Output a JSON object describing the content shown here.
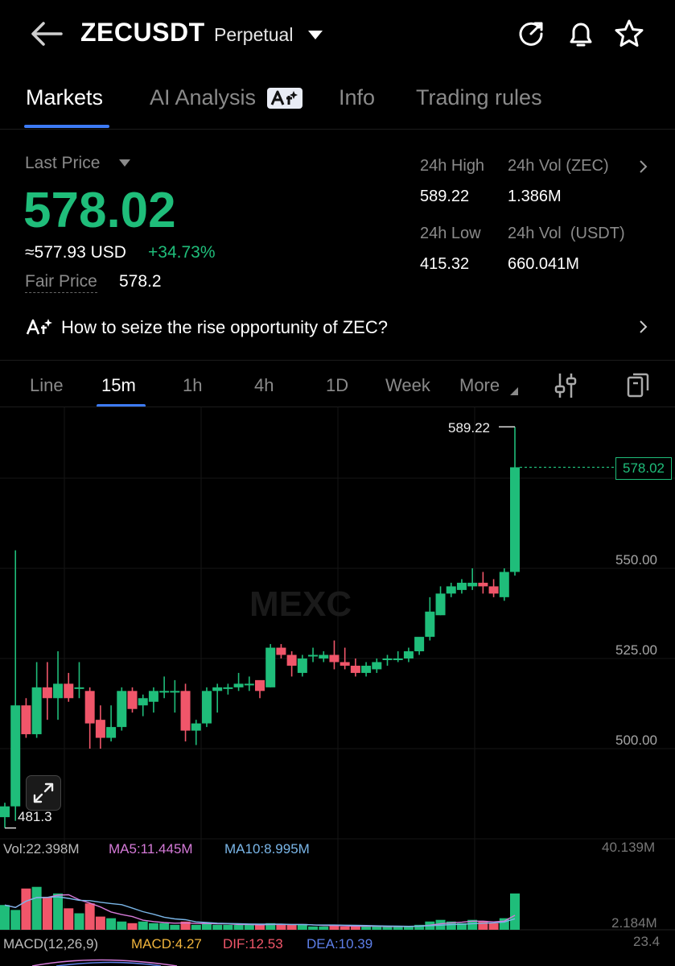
{
  "header": {
    "title": "ZECUSDT",
    "subtitle": "Perpetual"
  },
  "tabs": [
    {
      "label": "Markets"
    },
    {
      "label": "AI Analysis"
    },
    {
      "label": "Info"
    },
    {
      "label": "Trading rules"
    }
  ],
  "price": {
    "last_price_label": "Last Price",
    "last_price": "578.02",
    "usd_equiv": "≈577.93 USD",
    "change": "+34.73%",
    "fair_label": "Fair Price",
    "fair_value": "578.2"
  },
  "stats": {
    "high_label": "24h High",
    "high_value": "589.22",
    "vol_zec_label": "24h Vol (ZEC)",
    "vol_zec_value": "1.386M",
    "low_label": "24h Low",
    "low_value": "415.32",
    "vol_usdt_label": "24h Vol  (USDT)",
    "vol_usdt_value": "660.041M"
  },
  "ai_banner": {
    "text": "How to seize the rise opportunity of ZEC?"
  },
  "intervals": [
    {
      "label": "Line"
    },
    {
      "label": "15m"
    },
    {
      "label": "1h"
    },
    {
      "label": "4h"
    },
    {
      "label": "1D"
    },
    {
      "label": "Week"
    },
    {
      "label": "More"
    }
  ],
  "chart": {
    "high_marker": "589.22",
    "low_marker": "481.3",
    "last_price_tag": "578.02",
    "y_labels": [
      "550.00",
      "525.00",
      "500.00"
    ],
    "volume_line": {
      "vol": "Vol:22.398M",
      "ma5": "MA5:11.445M",
      "ma10": "MA10:8.995M",
      "top": "40.139M",
      "bottom": "2.184M"
    },
    "macd_line": {
      "label": "MACD(12,26,9)",
      "macd": "MACD:4.27",
      "dif": "DIF:12.53",
      "dea": "DEA:10.39",
      "right": "23.4"
    },
    "watermark": "MEXC"
  },
  "colors": {
    "up": "#1fbd7a",
    "down": "#f0566a",
    "accent": "#3d7bf5"
  },
  "chart_data": {
    "type": "candlestick",
    "candles": [
      {
        "o": 481,
        "h": 485,
        "l": 478,
        "c": 484
      },
      {
        "o": 484,
        "h": 555,
        "l": 480,
        "c": 512
      },
      {
        "o": 512,
        "h": 514,
        "l": 503,
        "c": 504
      },
      {
        "o": 504,
        "h": 524,
        "l": 503,
        "c": 517
      },
      {
        "o": 517,
        "h": 524,
        "l": 508,
        "c": 514
      },
      {
        "o": 514,
        "h": 527,
        "l": 508,
        "c": 518
      },
      {
        "o": 518,
        "h": 521,
        "l": 513,
        "c": 514
      },
      {
        "o": 517,
        "h": 524,
        "l": 514,
        "c": 517
      },
      {
        "o": 516,
        "h": 517,
        "l": 500,
        "c": 507
      },
      {
        "o": 508,
        "h": 512,
        "l": 500,
        "c": 503
      },
      {
        "o": 503,
        "h": 512,
        "l": 502,
        "c": 506
      },
      {
        "o": 506,
        "h": 517,
        "l": 505,
        "c": 516
      },
      {
        "o": 516,
        "h": 517,
        "l": 510,
        "c": 511
      },
      {
        "o": 512,
        "h": 515,
        "l": 509,
        "c": 514
      },
      {
        "o": 513,
        "h": 517,
        "l": 510,
        "c": 516
      },
      {
        "o": 516,
        "h": 520,
        "l": 514,
        "c": 516
      },
      {
        "o": 516,
        "h": 519,
        "l": 510,
        "c": 516
      },
      {
        "o": 516,
        "h": 518,
        "l": 502,
        "c": 505
      },
      {
        "o": 505,
        "h": 508,
        "l": 501,
        "c": 507
      },
      {
        "o": 507,
        "h": 517,
        "l": 506,
        "c": 516
      },
      {
        "o": 516,
        "h": 518,
        "l": 510,
        "c": 517
      },
      {
        "o": 517,
        "h": 518,
        "l": 515,
        "c": 517
      },
      {
        "o": 517,
        "h": 521,
        "l": 516,
        "c": 518
      },
      {
        "o": 518,
        "h": 520,
        "l": 516,
        "c": 518
      },
      {
        "o": 519,
        "h": 518,
        "l": 514,
        "c": 516
      },
      {
        "o": 517,
        "h": 529,
        "l": 517,
        "c": 528
      },
      {
        "o": 528,
        "h": 529,
        "l": 525,
        "c": 526
      },
      {
        "o": 526,
        "h": 527,
        "l": 520,
        "c": 523
      },
      {
        "o": 521,
        "h": 526,
        "l": 520,
        "c": 525
      },
      {
        "o": 526,
        "h": 528,
        "l": 524,
        "c": 526
      },
      {
        "o": 525,
        "h": 527,
        "l": 524,
        "c": 526
      },
      {
        "o": 526,
        "h": 530,
        "l": 522,
        "c": 524
      },
      {
        "o": 524,
        "h": 528,
        "l": 522,
        "c": 523
      },
      {
        "o": 523,
        "h": 525,
        "l": 520,
        "c": 521
      },
      {
        "o": 521,
        "h": 524,
        "l": 520,
        "c": 523
      },
      {
        "o": 522,
        "h": 525,
        "l": 521,
        "c": 524
      },
      {
        "o": 525,
        "h": 526,
        "l": 523,
        "c": 525
      },
      {
        "o": 525,
        "h": 527,
        "l": 524,
        "c": 525
      },
      {
        "o": 525,
        "h": 528,
        "l": 524,
        "c": 527
      },
      {
        "o": 527,
        "h": 530,
        "l": 526,
        "c": 531
      },
      {
        "o": 531,
        "h": 542,
        "l": 530,
        "c": 538
      },
      {
        "o": 537,
        "h": 545,
        "l": 537,
        "c": 543
      },
      {
        "o": 543,
        "h": 546,
        "l": 542,
        "c": 545
      },
      {
        "o": 544,
        "h": 547,
        "l": 543,
        "c": 546
      },
      {
        "o": 545,
        "h": 550,
        "l": 544,
        "c": 546
      },
      {
        "o": 546,
        "h": 549,
        "l": 543,
        "c": 545
      },
      {
        "o": 545,
        "h": 547,
        "l": 542,
        "c": 543
      },
      {
        "o": 542,
        "h": 550,
        "l": 541,
        "c": 549
      },
      {
        "o": 549,
        "h": 589.22,
        "l": 548,
        "c": 578.02
      }
    ],
    "volumes": [
      15,
      12,
      25,
      26,
      20,
      22,
      13,
      10,
      16,
      8,
      7,
      5,
      4,
      5,
      4,
      4,
      3,
      5,
      3,
      4,
      3,
      3,
      3,
      3,
      3,
      4,
      3,
      3,
      3,
      2,
      2,
      3,
      2,
      2,
      2,
      2,
      2,
      2,
      2,
      3,
      5,
      6,
      5,
      4,
      6,
      5,
      4,
      7,
      22
    ],
    "y_range": [
      478,
      595
    ]
  }
}
